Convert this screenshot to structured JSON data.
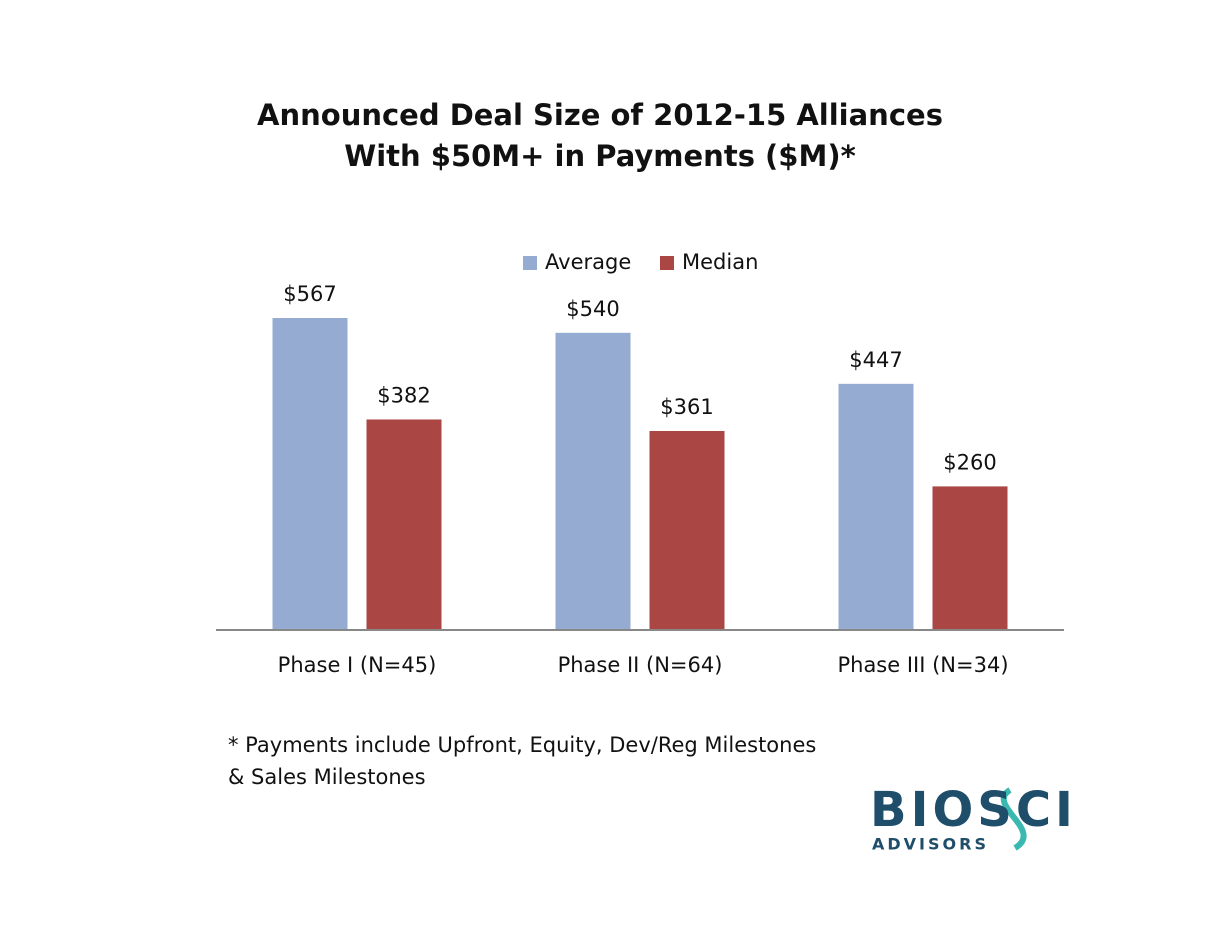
{
  "chart_data": {
    "type": "bar",
    "title": [
      "Announced Deal Size of 2012-15 Alliances",
      "With $50M+ in Payments ($M)*"
    ],
    "categories": [
      "Phase I (N=45)",
      "Phase II (N=64)",
      "Phase III (N=34)"
    ],
    "series": [
      {
        "name": "Average",
        "color": "#95abd1",
        "values": [
          567,
          540,
          447
        ],
        "value_labels": [
          "$567",
          "$540",
          "$447"
        ]
      },
      {
        "name": "Median",
        "color": "#aa4644",
        "values": [
          382,
          361,
          260
        ],
        "value_labels": [
          "$382",
          "$361",
          "$260"
        ]
      }
    ],
    "legend": "top",
    "footnote": [
      "* Payments include Upfront, Equity, Dev/Reg Milestones",
      "& Sales Milestones"
    ]
  },
  "logo": {
    "name": "BIOSCI",
    "tagline": "ADVISORS"
  }
}
